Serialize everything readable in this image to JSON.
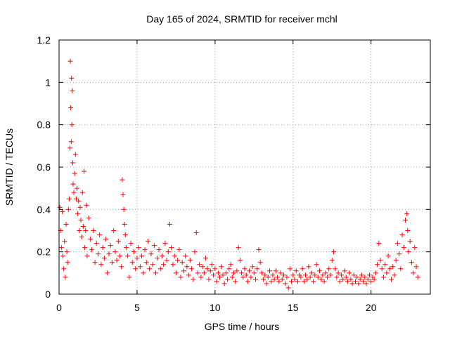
{
  "chart_data": {
    "type": "scatter",
    "title": "Day 165 of 2024, SRMTID for receiver mchl",
    "xlabel": "GPS time / hours",
    "ylabel": "SRMTID / TECUs",
    "xlim": [
      0,
      23.8
    ],
    "ylim": [
      0,
      1.2
    ],
    "x_ticks": [
      0,
      5,
      10,
      15,
      20
    ],
    "x_tick_labels": [
      "0",
      "5",
      "10",
      "15",
      "20"
    ],
    "y_ticks": [
      0,
      0.2,
      0.4,
      0.6,
      0.8,
      1.0,
      1.2
    ],
    "y_tick_labels": [
      "0",
      "0.2",
      "0.4",
      "0.6",
      "0.8",
      "1",
      "1.2"
    ],
    "grid": true,
    "marker": "+",
    "marker_color": "#ff0000",
    "series": [
      {
        "name": "SRMTID",
        "points": [
          [
            0.05,
            0.41
          ],
          [
            0.1,
            0.3
          ],
          [
            0.15,
            0.22
          ],
          [
            0.2,
            0.39
          ],
          [
            0.25,
            0.18
          ],
          [
            0.3,
            0.12
          ],
          [
            0.35,
            0.25
          ],
          [
            0.4,
            0.08
          ],
          [
            0.45,
            0.33
          ],
          [
            0.5,
            0.2
          ],
          [
            0.55,
            0.15
          ],
          [
            0.6,
            0.4
          ],
          [
            0.65,
            0.45
          ],
          [
            0.7,
            0.69
          ],
          [
            0.72,
            1.1
          ],
          [
            0.75,
            0.88
          ],
          [
            0.78,
            0.72
          ],
          [
            0.8,
            1.02
          ],
          [
            0.82,
            0.8
          ],
          [
            0.85,
            0.96
          ],
          [
            0.88,
            0.62
          ],
          [
            0.9,
            0.52
          ],
          [
            0.95,
            0.48
          ],
          [
            1.0,
            0.57
          ],
          [
            1.05,
            0.66
          ],
          [
            1.1,
            0.45
          ],
          [
            1.15,
            0.5
          ],
          [
            1.2,
            0.38
          ],
          [
            1.25,
            0.44
          ],
          [
            1.3,
            0.3
          ],
          [
            1.35,
            0.41
          ],
          [
            1.4,
            0.35
          ],
          [
            1.45,
            0.27
          ],
          [
            1.5,
            0.48
          ],
          [
            1.55,
            0.32
          ],
          [
            1.6,
            0.58
          ],
          [
            1.65,
            0.22
          ],
          [
            1.7,
            0.3
          ],
          [
            1.75,
            0.42
          ],
          [
            1.8,
            0.18
          ],
          [
            1.9,
            0.36
          ],
          [
            2.0,
            0.26
          ],
          [
            2.1,
            0.21
          ],
          [
            2.2,
            0.3
          ],
          [
            2.3,
            0.15
          ],
          [
            2.4,
            0.24
          ],
          [
            2.5,
            0.19
          ],
          [
            2.6,
            0.28
          ],
          [
            2.7,
            0.14
          ],
          [
            2.8,
            0.22
          ],
          [
            2.9,
            0.17
          ],
          [
            3.0,
            0.26
          ],
          [
            3.1,
            0.1
          ],
          [
            3.2,
            0.19
          ],
          [
            3.3,
            0.23
          ],
          [
            3.4,
            0.15
          ],
          [
            3.5,
            0.3
          ],
          [
            3.6,
            0.2
          ],
          [
            3.7,
            0.16
          ],
          [
            3.8,
            0.25
          ],
          [
            3.9,
            0.18
          ],
          [
            4.0,
            0.13
          ],
          [
            4.05,
            0.54
          ],
          [
            4.1,
            0.47
          ],
          [
            4.15,
            0.4
          ],
          [
            4.2,
            0.33
          ],
          [
            4.25,
            0.28
          ],
          [
            4.3,
            0.22
          ],
          [
            4.4,
            0.18
          ],
          [
            4.5,
            0.08
          ],
          [
            4.6,
            0.24
          ],
          [
            4.7,
            0.15
          ],
          [
            4.8,
            0.2
          ],
          [
            4.9,
            0.12
          ],
          [
            5.0,
            0.17
          ],
          [
            5.1,
            0.22
          ],
          [
            5.2,
            0.13
          ],
          [
            5.3,
            0.18
          ],
          [
            5.4,
            0.1
          ],
          [
            5.5,
            0.21
          ],
          [
            5.6,
            0.15
          ],
          [
            5.7,
            0.25
          ],
          [
            5.8,
            0.12
          ],
          [
            5.9,
            0.19
          ],
          [
            6.0,
            0.14
          ],
          [
            6.1,
            0.23
          ],
          [
            6.2,
            0.1
          ],
          [
            6.3,
            0.17
          ],
          [
            6.4,
            0.21
          ],
          [
            6.5,
            0.12
          ],
          [
            6.6,
            0.18
          ],
          [
            6.7,
            0.14
          ],
          [
            6.8,
            0.24
          ],
          [
            6.9,
            0.16
          ],
          [
            7.0,
            0.2
          ],
          [
            7.1,
            0.33
          ],
          [
            7.2,
            0.22
          ],
          [
            7.3,
            0.14
          ],
          [
            7.4,
            0.18
          ],
          [
            7.5,
            0.1
          ],
          [
            7.6,
            0.16
          ],
          [
            7.7,
            0.21
          ],
          [
            7.8,
            0.08
          ],
          [
            7.9,
            0.15
          ],
          [
            8.0,
            0.11
          ],
          [
            8.1,
            0.18
          ],
          [
            8.2,
            0.13
          ],
          [
            8.3,
            0.09
          ],
          [
            8.4,
            0.16
          ],
          [
            8.5,
            0.12
          ],
          [
            8.6,
            0.07
          ],
          [
            8.7,
            0.2
          ],
          [
            8.8,
            0.29
          ],
          [
            8.9,
            0.1
          ],
          [
            9.0,
            0.14
          ],
          [
            9.1,
            0.08
          ],
          [
            9.2,
            0.13
          ],
          [
            9.3,
            0.1
          ],
          [
            9.4,
            0.17
          ],
          [
            9.5,
            0.12
          ],
          [
            9.6,
            0.07
          ],
          [
            9.7,
            0.11
          ],
          [
            9.8,
            0.14
          ],
          [
            9.9,
            0.09
          ],
          [
            10.0,
            0.12
          ],
          [
            10.1,
            0.06
          ],
          [
            10.2,
            0.1
          ],
          [
            10.3,
            0.08
          ],
          [
            10.4,
            0.13
          ],
          [
            10.5,
            0.09
          ],
          [
            10.6,
            0.05
          ],
          [
            10.7,
            0.1
          ],
          [
            10.8,
            0.07
          ],
          [
            10.9,
            0.12
          ],
          [
            11.0,
            0.14
          ],
          [
            11.1,
            0.08
          ],
          [
            11.2,
            0.1
          ],
          [
            11.3,
            0.06
          ],
          [
            11.4,
            0.11
          ],
          [
            11.5,
            0.22
          ],
          [
            11.6,
            0.16
          ],
          [
            11.7,
            0.1
          ],
          [
            11.8,
            0.08
          ],
          [
            11.9,
            0.12
          ],
          [
            12.0,
            0.09
          ],
          [
            12.1,
            0.06
          ],
          [
            12.2,
            0.11
          ],
          [
            12.3,
            0.08
          ],
          [
            12.4,
            0.13
          ],
          [
            12.5,
            0.1
          ],
          [
            12.6,
            0.07
          ],
          [
            12.7,
            0.12
          ],
          [
            12.8,
            0.21
          ],
          [
            12.9,
            0.15
          ],
          [
            13.0,
            0.1
          ],
          [
            13.1,
            0.07
          ],
          [
            13.2,
            0.09
          ],
          [
            13.3,
            0.05
          ],
          [
            13.4,
            0.08
          ],
          [
            13.5,
            0.11
          ],
          [
            13.6,
            0.06
          ],
          [
            13.7,
            0.09
          ],
          [
            13.8,
            0.07
          ],
          [
            13.9,
            0.11
          ],
          [
            14.0,
            0.08
          ],
          [
            14.1,
            0.06
          ],
          [
            14.2,
            0.1
          ],
          [
            14.3,
            0.07
          ],
          [
            14.4,
            0.09
          ],
          [
            14.5,
            0.05
          ],
          [
            14.6,
            0.08
          ],
          [
            14.7,
            0.03
          ],
          [
            14.8,
            0.12
          ],
          [
            14.9,
            0.06
          ],
          [
            15.0,
            0.09
          ],
          [
            15.1,
            0.07
          ],
          [
            15.2,
            0.11
          ],
          [
            15.3,
            0.06
          ],
          [
            15.4,
            0.09
          ],
          [
            15.5,
            0.08
          ],
          [
            15.6,
            0.12
          ],
          [
            15.7,
            0.06
          ],
          [
            15.8,
            0.09
          ],
          [
            15.9,
            0.07
          ],
          [
            16.0,
            0.13
          ],
          [
            16.1,
            0.08
          ],
          [
            16.2,
            0.1
          ],
          [
            16.3,
            0.06
          ],
          [
            16.4,
            0.09
          ],
          [
            16.5,
            0.14
          ],
          [
            16.6,
            0.08
          ],
          [
            16.7,
            0.11
          ],
          [
            16.8,
            0.07
          ],
          [
            16.9,
            0.09
          ],
          [
            17.0,
            0.06
          ],
          [
            17.1,
            0.1
          ],
          [
            17.2,
            0.08
          ],
          [
            17.3,
            0.12
          ],
          [
            17.4,
            0.09
          ],
          [
            17.5,
            0.16
          ],
          [
            17.6,
            0.2
          ],
          [
            17.7,
            0.12
          ],
          [
            17.8,
            0.08
          ],
          [
            17.9,
            0.1
          ],
          [
            18.0,
            0.06
          ],
          [
            18.1,
            0.09
          ],
          [
            18.2,
            0.07
          ],
          [
            18.3,
            0.11
          ],
          [
            18.4,
            0.08
          ],
          [
            18.5,
            0.06
          ],
          [
            18.6,
            0.1
          ],
          [
            18.7,
            0.07
          ],
          [
            18.8,
            0.05
          ],
          [
            18.9,
            0.09
          ],
          [
            19.0,
            0.06
          ],
          [
            19.1,
            0.08
          ],
          [
            19.2,
            0.05
          ],
          [
            19.3,
            0.07
          ],
          [
            19.4,
            0.09
          ],
          [
            19.5,
            0.06
          ],
          [
            19.6,
            0.08
          ],
          [
            19.7,
            0.05
          ],
          [
            19.8,
            0.07
          ],
          [
            19.9,
            0.09
          ],
          [
            20.0,
            0.06
          ],
          [
            20.1,
            0.08
          ],
          [
            20.2,
            0.07
          ],
          [
            20.3,
            0.1
          ],
          [
            20.4,
            0.14
          ],
          [
            20.5,
            0.24
          ],
          [
            20.6,
            0.16
          ],
          [
            20.7,
            0.12
          ],
          [
            20.8,
            0.08
          ],
          [
            20.9,
            0.14
          ],
          [
            21.0,
            0.1
          ],
          [
            21.1,
            0.18
          ],
          [
            21.2,
            0.12
          ],
          [
            21.3,
            0.07
          ],
          [
            21.4,
            0.13
          ],
          [
            21.5,
            0.09
          ],
          [
            21.6,
            0.16
          ],
          [
            21.7,
            0.24
          ],
          [
            21.8,
            0.19
          ],
          [
            21.9,
            0.12
          ],
          [
            22.0,
            0.28
          ],
          [
            22.1,
            0.22
          ],
          [
            22.2,
            0.35
          ],
          [
            22.3,
            0.38
          ],
          [
            22.35,
            0.3
          ],
          [
            22.4,
            0.2
          ],
          [
            22.5,
            0.25
          ],
          [
            22.6,
            0.15
          ],
          [
            22.7,
            0.1
          ],
          [
            22.8,
            0.22
          ],
          [
            22.9,
            0.13
          ],
          [
            23.0,
            0.08
          ]
        ]
      }
    ]
  }
}
